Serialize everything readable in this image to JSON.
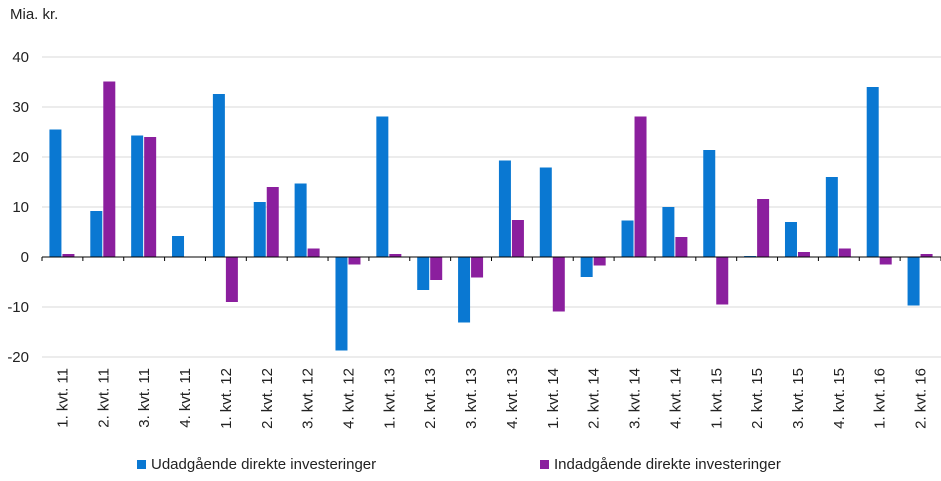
{
  "chart_data": {
    "type": "bar",
    "unit_label": "Mia. kr.",
    "ylim": [
      -20,
      40
    ],
    "yticks": [
      -20,
      -10,
      0,
      10,
      20,
      30,
      40
    ],
    "grid": true,
    "legend_position": "bottom",
    "categories": [
      "1. kvt. 11",
      "2. kvt. 11",
      "3. kvt. 11",
      "4. kvt. 11",
      "1. kvt. 12",
      "2. kvt. 12",
      "3. kvt. 12",
      "4. kvt. 12",
      "1. kvt. 13",
      "2. kvt. 13",
      "3. kvt. 13",
      "4. kvt. 13",
      "1. kvt. 14",
      "2. kvt. 14",
      "3. kvt. 14",
      "4. kvt. 14",
      "1. kvt. 15",
      "2. kvt. 15",
      "3. kvt. 15",
      "4. kvt. 15",
      "1. kvt. 16",
      "2. kvt. 16"
    ],
    "series": [
      {
        "name": "Udadgående direkte investeringer",
        "color": "#0a78d2",
        "values": [
          25.5,
          9.2,
          24.3,
          4.2,
          32.6,
          11.0,
          14.7,
          -18.7,
          28.1,
          -6.6,
          -13.1,
          19.3,
          17.9,
          -4.0,
          7.3,
          10.0,
          21.4,
          0.2,
          7.0,
          16.0,
          34.0,
          -9.7
        ]
      },
      {
        "name": "Indadgående direkte investeringer",
        "color": "#8b1f9e",
        "values": [
          0.6,
          35.1,
          24.0,
          0.0,
          -9.0,
          14.0,
          1.7,
          -1.5,
          0.6,
          -4.6,
          -4.1,
          7.4,
          -10.9,
          -1.7,
          28.1,
          4.0,
          -9.5,
          11.6,
          1.0,
          1.7,
          -1.5,
          0.6
        ]
      }
    ]
  }
}
